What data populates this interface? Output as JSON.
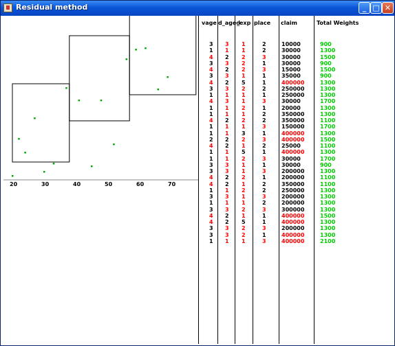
{
  "window": {
    "title": "Residual method"
  },
  "colors": {
    "red": "#ff0000",
    "black": "#000000",
    "green": "#00cc00",
    "point": "#00aa00"
  },
  "chart_data": {
    "type": "scatter",
    "xlim": [
      20,
      80
    ],
    "ylim": [
      0,
      100
    ],
    "x_ticks": [
      "20",
      "30",
      "40",
      "50",
      "60",
      "70",
      "80",
      "90",
      "100"
    ],
    "points": [
      {
        "x": 20,
        "y": 3
      },
      {
        "x": 22,
        "y": 30
      },
      {
        "x": 24,
        "y": 20
      },
      {
        "x": 27,
        "y": 45
      },
      {
        "x": 30,
        "y": 6
      },
      {
        "x": 33,
        "y": 12
      },
      {
        "x": 37,
        "y": 67
      },
      {
        "x": 41,
        "y": 58
      },
      {
        "x": 45,
        "y": 10
      },
      {
        "x": 48,
        "y": 58
      },
      {
        "x": 52,
        "y": 26
      },
      {
        "x": 56,
        "y": 88
      },
      {
        "x": 59,
        "y": 95
      },
      {
        "x": 62,
        "y": 96
      },
      {
        "x": 66,
        "y": 66
      },
      {
        "x": 69,
        "y": 75
      }
    ],
    "boxes": [
      {
        "x0": 20,
        "x1": 38,
        "y0": 13,
        "y1": 70
      },
      {
        "x0": 38,
        "x1": 57,
        "y0": 43,
        "y1": 105
      },
      {
        "x0": 57,
        "x1": 78,
        "y0": 62,
        "y1": 128
      }
    ]
  },
  "table": {
    "headers": [
      "vage",
      "d_aged",
      "_exp",
      "place",
      "claim",
      "Total Weights"
    ],
    "rows": [
      [
        [
          "3",
          "k"
        ],
        [
          "3",
          "r"
        ],
        [
          "1",
          "r"
        ],
        [
          "2",
          "k"
        ],
        [
          "10000",
          "k"
        ],
        [
          "900",
          "g"
        ]
      ],
      [
        [
          "1",
          "k"
        ],
        [
          "1",
          "r"
        ],
        [
          "1",
          "r"
        ],
        [
          "2",
          "k"
        ],
        [
          "30000",
          "k"
        ],
        [
          "1300",
          "g"
        ]
      ],
      [
        [
          "4",
          "r"
        ],
        [
          "2",
          "k"
        ],
        [
          "2",
          "r"
        ],
        [
          "3",
          "r"
        ],
        [
          "30000",
          "k"
        ],
        [
          "1500",
          "g"
        ]
      ],
      [
        [
          "3",
          "k"
        ],
        [
          "3",
          "r"
        ],
        [
          "2",
          "r"
        ],
        [
          "1",
          "k"
        ],
        [
          "30000",
          "k"
        ],
        [
          "900",
          "g"
        ]
      ],
      [
        [
          "4",
          "r"
        ],
        [
          "2",
          "k"
        ],
        [
          "2",
          "r"
        ],
        [
          "3",
          "r"
        ],
        [
          "15000",
          "k"
        ],
        [
          "1500",
          "g"
        ]
      ],
      [
        [
          "3",
          "k"
        ],
        [
          "3",
          "r"
        ],
        [
          "1",
          "r"
        ],
        [
          "1",
          "k"
        ],
        [
          "35000",
          "k"
        ],
        [
          "900",
          "g"
        ]
      ],
      [
        [
          "4",
          "r"
        ],
        [
          "2",
          "k"
        ],
        [
          "5",
          "k"
        ],
        [
          "1",
          "k"
        ],
        [
          "400000",
          "r"
        ],
        [
          "1300",
          "g"
        ]
      ],
      [
        [
          "3",
          "k"
        ],
        [
          "3",
          "r"
        ],
        [
          "2",
          "r"
        ],
        [
          "2",
          "k"
        ],
        [
          "250000",
          "k"
        ],
        [
          "1300",
          "g"
        ]
      ],
      [
        [
          "1",
          "k"
        ],
        [
          "1",
          "r"
        ],
        [
          "1",
          "r"
        ],
        [
          "1",
          "k"
        ],
        [
          "250000",
          "k"
        ],
        [
          "1300",
          "g"
        ]
      ],
      [
        [
          "4",
          "r"
        ],
        [
          "3",
          "r"
        ],
        [
          "1",
          "r"
        ],
        [
          "3",
          "r"
        ],
        [
          "30000",
          "k"
        ],
        [
          "1700",
          "g"
        ]
      ],
      [
        [
          "1",
          "k"
        ],
        [
          "1",
          "r"
        ],
        [
          "2",
          "r"
        ],
        [
          "1",
          "k"
        ],
        [
          "20000",
          "k"
        ],
        [
          "1300",
          "g"
        ]
      ],
      [
        [
          "1",
          "k"
        ],
        [
          "1",
          "r"
        ],
        [
          "1",
          "r"
        ],
        [
          "2",
          "k"
        ],
        [
          "350000",
          "k"
        ],
        [
          "1300",
          "g"
        ]
      ],
      [
        [
          "4",
          "r"
        ],
        [
          "2",
          "k"
        ],
        [
          "2",
          "r"
        ],
        [
          "2",
          "k"
        ],
        [
          "350000",
          "k"
        ],
        [
          "1100",
          "g"
        ]
      ],
      [
        [
          "1",
          "k"
        ],
        [
          "1",
          "r"
        ],
        [
          "1",
          "r"
        ],
        [
          "3",
          "r"
        ],
        [
          "150000",
          "k"
        ],
        [
          "1700",
          "g"
        ]
      ],
      [
        [
          "1",
          "k"
        ],
        [
          "1",
          "r"
        ],
        [
          "3",
          "k"
        ],
        [
          "1",
          "k"
        ],
        [
          "400000",
          "r"
        ],
        [
          "1300",
          "g"
        ]
      ],
      [
        [
          "2",
          "k"
        ],
        [
          "2",
          "k"
        ],
        [
          "2",
          "r"
        ],
        [
          "3",
          "r"
        ],
        [
          "400000",
          "r"
        ],
        [
          "1500",
          "g"
        ]
      ],
      [
        [
          "4",
          "r"
        ],
        [
          "2",
          "k"
        ],
        [
          "1",
          "r"
        ],
        [
          "2",
          "k"
        ],
        [
          "25000",
          "k"
        ],
        [
          "1100",
          "g"
        ]
      ],
      [
        [
          "1",
          "k"
        ],
        [
          "1",
          "r"
        ],
        [
          "5",
          "k"
        ],
        [
          "1",
          "k"
        ],
        [
          "400000",
          "r"
        ],
        [
          "1300",
          "g"
        ]
      ],
      [
        [
          "1",
          "k"
        ],
        [
          "1",
          "r"
        ],
        [
          "2",
          "r"
        ],
        [
          "3",
          "r"
        ],
        [
          "30000",
          "k"
        ],
        [
          "1700",
          "g"
        ]
      ],
      [
        [
          "3",
          "k"
        ],
        [
          "3",
          "r"
        ],
        [
          "1",
          "r"
        ],
        [
          "1",
          "k"
        ],
        [
          "30000",
          "k"
        ],
        [
          "900",
          "g"
        ]
      ],
      [
        [
          "3",
          "k"
        ],
        [
          "3",
          "r"
        ],
        [
          "1",
          "r"
        ],
        [
          "3",
          "r"
        ],
        [
          "200000",
          "k"
        ],
        [
          "1300",
          "g"
        ]
      ],
      [
        [
          "4",
          "r"
        ],
        [
          "2",
          "k"
        ],
        [
          "2",
          "r"
        ],
        [
          "1",
          "k"
        ],
        [
          "200000",
          "k"
        ],
        [
          "1100",
          "g"
        ]
      ],
      [
        [
          "4",
          "r"
        ],
        [
          "2",
          "k"
        ],
        [
          "1",
          "r"
        ],
        [
          "2",
          "k"
        ],
        [
          "350000",
          "k"
        ],
        [
          "1100",
          "g"
        ]
      ],
      [
        [
          "1",
          "k"
        ],
        [
          "1",
          "r"
        ],
        [
          "2",
          "r"
        ],
        [
          "2",
          "k"
        ],
        [
          "250000",
          "k"
        ],
        [
          "1300",
          "g"
        ]
      ],
      [
        [
          "3",
          "k"
        ],
        [
          "3",
          "r"
        ],
        [
          "1",
          "r"
        ],
        [
          "3",
          "r"
        ],
        [
          "200000",
          "k"
        ],
        [
          "1300",
          "g"
        ]
      ],
      [
        [
          "1",
          "k"
        ],
        [
          "1",
          "r"
        ],
        [
          "1",
          "r"
        ],
        [
          "2",
          "k"
        ],
        [
          "200000",
          "k"
        ],
        [
          "1300",
          "g"
        ]
      ],
      [
        [
          "3",
          "k"
        ],
        [
          "3",
          "r"
        ],
        [
          "2",
          "r"
        ],
        [
          "3",
          "r"
        ],
        [
          "300000",
          "k"
        ],
        [
          "1300",
          "g"
        ]
      ],
      [
        [
          "4",
          "r"
        ],
        [
          "2",
          "k"
        ],
        [
          "1",
          "r"
        ],
        [
          "1",
          "k"
        ],
        [
          "400000",
          "r"
        ],
        [
          "1500",
          "g"
        ]
      ],
      [
        [
          "4",
          "r"
        ],
        [
          "2",
          "k"
        ],
        [
          "5",
          "k"
        ],
        [
          "1",
          "k"
        ],
        [
          "400000",
          "r"
        ],
        [
          "1300",
          "g"
        ]
      ],
      [
        [
          "3",
          "k"
        ],
        [
          "3",
          "r"
        ],
        [
          "2",
          "r"
        ],
        [
          "3",
          "r"
        ],
        [
          "200000",
          "k"
        ],
        [
          "1300",
          "g"
        ]
      ],
      [
        [
          "3",
          "k"
        ],
        [
          "3",
          "r"
        ],
        [
          "2",
          "r"
        ],
        [
          "1",
          "k"
        ],
        [
          "400000",
          "r"
        ],
        [
          "1300",
          "g"
        ]
      ],
      [
        [
          "1",
          "k"
        ],
        [
          "1",
          "r"
        ],
        [
          "1",
          "r"
        ],
        [
          "3",
          "r"
        ],
        [
          "400000",
          "r"
        ],
        [
          "2100",
          "g"
        ]
      ]
    ]
  }
}
